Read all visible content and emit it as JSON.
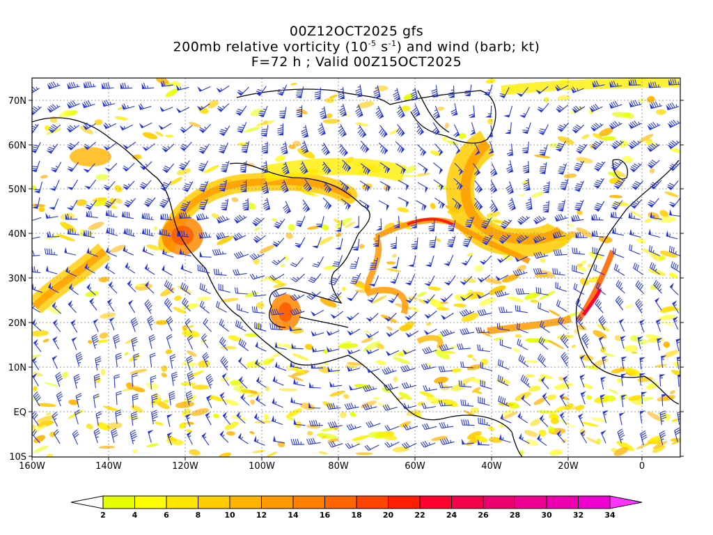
{
  "title": {
    "line1": "00Z12OCT2025 gfs",
    "line2_pre": "200mb relative vorticity (10",
    "line2_exp1": "-5",
    "line2_mid": " s",
    "line2_exp2": "-1",
    "line2_post": ") and wind (barb; kt)",
    "line3": "F=72 h ; Valid 00Z15OCT2025"
  },
  "axes": {
    "lat_labels": [
      "70N",
      "60N",
      "50N",
      "40N",
      "30N",
      "20N",
      "10N",
      "EQ",
      "10S"
    ],
    "lon_labels": [
      "160W",
      "140W",
      "120W",
      "100W",
      "80W",
      "60W",
      "40W",
      "20W",
      "0"
    ]
  },
  "colorbar": {
    "labels": [
      "2",
      "4",
      "6",
      "8",
      "10",
      "12",
      "14",
      "16",
      "18",
      "20",
      "22",
      "24",
      "26",
      "28",
      "30",
      "32",
      "34"
    ],
    "colors": [
      "#e6ff00",
      "#ffff00",
      "#ffe600",
      "#ffcc00",
      "#ffb400",
      "#ff9a00",
      "#ff8000",
      "#ff6600",
      "#ff4400",
      "#ff1e00",
      "#ff0030",
      "#f5004a",
      "#ee0070",
      "#ee0090",
      "#ee00b0",
      "#ee00d0",
      "#ff33ff"
    ]
  },
  "legend_colors": {
    "barbs": "#2233dd",
    "coast": "#000000",
    "shade_low": "#ffee00",
    "shade_mid": "#ff9900",
    "shade_high": "#ff2200"
  }
}
